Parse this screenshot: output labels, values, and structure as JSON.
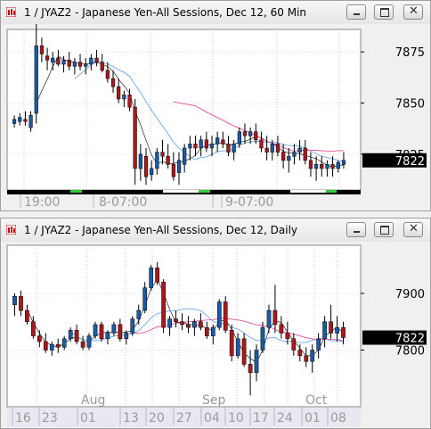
{
  "windows": [
    {
      "title": "1 / JYAZ2 - Japanese Yen-All Sessions, Dec 12, 60 Min",
      "price_labels": [
        "7875",
        "7850",
        "7825"
      ],
      "price_values": [
        7875,
        7850,
        7825
      ],
      "last_price": "7822",
      "time_labels": [
        "19:00",
        "8-07:00",
        "9-07:00"
      ],
      "chart_data": {
        "type": "candlestick",
        "title": "1 / JYAZ2 - Japanese Yen-All Sessions, Dec 12, 60 Min",
        "ylim": [
          7807.5,
          7886
        ],
        "last": 7822,
        "candles": [
          [
            7840,
            7844,
            7838,
            7842
          ],
          [
            7841,
            7845,
            7839,
            7843
          ],
          [
            7842,
            7846,
            7839,
            7841
          ],
          [
            7838,
            7846,
            7836,
            7844
          ],
          [
            7845,
            7890,
            7840,
            7878
          ],
          [
            7878,
            7882,
            7870,
            7874
          ],
          [
            7873,
            7877,
            7866,
            7871
          ],
          [
            7870,
            7875,
            7866,
            7872
          ],
          [
            7872,
            7876,
            7868,
            7869
          ],
          [
            7869,
            7873,
            7865,
            7871
          ],
          [
            7871,
            7875,
            7866,
            7868
          ],
          [
            7868,
            7872,
            7864,
            7870
          ],
          [
            7870,
            7874,
            7866,
            7868
          ],
          [
            7868,
            7872,
            7864,
            7869
          ],
          [
            7869,
            7874,
            7866,
            7872
          ],
          [
            7872,
            7876,
            7868,
            7870
          ],
          [
            7870,
            7874,
            7865,
            7866
          ],
          [
            7866,
            7870,
            7860,
            7862
          ],
          [
            7862,
            7866,
            7855,
            7858
          ],
          [
            7858,
            7862,
            7850,
            7852
          ],
          [
            7852,
            7856,
            7848,
            7854
          ],
          [
            7854,
            7857,
            7846,
            7848
          ],
          [
            7848,
            7852,
            7810,
            7818
          ],
          [
            7818,
            7830,
            7812,
            7825
          ],
          [
            7824,
            7828,
            7810,
            7814
          ],
          [
            7815,
            7822,
            7812,
            7818
          ],
          [
            7818,
            7828,
            7815,
            7826
          ],
          [
            7826,
            7832,
            7820,
            7824
          ],
          [
            7824,
            7830,
            7818,
            7820
          ],
          [
            7820,
            7826,
            7812,
            7814
          ],
          [
            7816,
            7826,
            7810,
            7822
          ],
          [
            7820,
            7830,
            7816,
            7828
          ],
          [
            7828,
            7834,
            7822,
            7830
          ],
          [
            7830,
            7834,
            7824,
            7828
          ],
          [
            7828,
            7834,
            7824,
            7832
          ],
          [
            7832,
            7836,
            7826,
            7828
          ],
          [
            7828,
            7834,
            7824,
            7830
          ],
          [
            7830,
            7836,
            7826,
            7833
          ],
          [
            7832,
            7836,
            7828,
            7830
          ],
          [
            7830,
            7834,
            7824,
            7826
          ],
          [
            7826,
            7832,
            7822,
            7830
          ],
          [
            7830,
            7838,
            7828,
            7836
          ],
          [
            7836,
            7840,
            7830,
            7834
          ],
          [
            7834,
            7838,
            7830,
            7836
          ],
          [
            7836,
            7840,
            7830,
            7832
          ],
          [
            7832,
            7836,
            7826,
            7828
          ],
          [
            7828,
            7834,
            7822,
            7826
          ],
          [
            7826,
            7832,
            7822,
            7830
          ],
          [
            7830,
            7834,
            7824,
            7826
          ],
          [
            7826,
            7830,
            7818,
            7822
          ],
          [
            7822,
            7828,
            7816,
            7824
          ],
          [
            7824,
            7830,
            7820,
            7826
          ],
          [
            7826,
            7832,
            7822,
            7828
          ],
          [
            7828,
            7832,
            7820,
            7822
          ],
          [
            7822,
            7826,
            7814,
            7818
          ],
          [
            7818,
            7824,
            7812,
            7820
          ],
          [
            7820,
            7824,
            7814,
            7818
          ],
          [
            7818,
            7822,
            7814,
            7820
          ],
          [
            7820,
            7824,
            7814,
            7818
          ],
          [
            7818,
            7822,
            7816,
            7821
          ],
          [
            7820,
            7826,
            7818,
            7822
          ]
        ]
      }
    },
    {
      "title": "1 / JYAZ2 - Japanese Yen-All Sessions, Dec 12, Daily",
      "price_labels": [
        "7900",
        "7800"
      ],
      "price_values": [
        7900,
        7800
      ],
      "last_price": "7822",
      "month_labels": [
        "Aug",
        "Sep",
        "Oct"
      ],
      "date_labels": [
        "16",
        "23",
        "01",
        "13",
        "20",
        "27",
        "04",
        "10",
        "17",
        "24",
        "01",
        "08"
      ],
      "chart_data": {
        "type": "candlestick",
        "title": "1 / JYAZ2 - Japanese Yen-All Sessions, Dec 12, Daily",
        "ylim": [
          7700,
          7985
        ],
        "last": 7822,
        "candles": [
          [
            7880,
            7900,
            7860,
            7895
          ],
          [
            7895,
            7905,
            7860,
            7870
          ],
          [
            7870,
            7880,
            7845,
            7850
          ],
          [
            7850,
            7860,
            7820,
            7825
          ],
          [
            7825,
            7835,
            7805,
            7815
          ],
          [
            7815,
            7830,
            7795,
            7800
          ],
          [
            7800,
            7815,
            7790,
            7810
          ],
          [
            7810,
            7820,
            7795,
            7805
          ],
          [
            7805,
            7825,
            7800,
            7820
          ],
          [
            7820,
            7840,
            7815,
            7835
          ],
          [
            7835,
            7845,
            7810,
            7815
          ],
          [
            7815,
            7825,
            7800,
            7805
          ],
          [
            7805,
            7830,
            7800,
            7825
          ],
          [
            7825,
            7850,
            7820,
            7845
          ],
          [
            7845,
            7850,
            7815,
            7820
          ],
          [
            7820,
            7835,
            7810,
            7830
          ],
          [
            7830,
            7850,
            7825,
            7845
          ],
          [
            7845,
            7855,
            7815,
            7820
          ],
          [
            7820,
            7835,
            7810,
            7830
          ],
          [
            7830,
            7860,
            7825,
            7855
          ],
          [
            7855,
            7880,
            7845,
            7870
          ],
          [
            7870,
            7920,
            7865,
            7910
          ],
          [
            7910,
            7950,
            7905,
            7945
          ],
          [
            7945,
            7955,
            7915,
            7920
          ],
          [
            7920,
            7925,
            7830,
            7840
          ],
          [
            7840,
            7860,
            7825,
            7855
          ],
          [
            7855,
            7870,
            7840,
            7850
          ],
          [
            7850,
            7865,
            7835,
            7845
          ],
          [
            7845,
            7860,
            7830,
            7840
          ],
          [
            7840,
            7855,
            7825,
            7850
          ],
          [
            7850,
            7865,
            7835,
            7840
          ],
          [
            7840,
            7850,
            7820,
            7825
          ],
          [
            7825,
            7845,
            7810,
            7840
          ],
          [
            7840,
            7890,
            7835,
            7885
          ],
          [
            7885,
            7895,
            7830,
            7835
          ],
          [
            7835,
            7845,
            7780,
            7790
          ],
          [
            7790,
            7830,
            7785,
            7820
          ],
          [
            7820,
            7830,
            7770,
            7775
          ],
          [
            7775,
            7800,
            7720,
            7760
          ],
          [
            7760,
            7810,
            7745,
            7800
          ],
          [
            7800,
            7850,
            7795,
            7840
          ],
          [
            7840,
            7880,
            7830,
            7870
          ],
          [
            7870,
            7915,
            7830,
            7845
          ],
          [
            7845,
            7860,
            7820,
            7830
          ],
          [
            7830,
            7850,
            7810,
            7820
          ],
          [
            7820,
            7830,
            7790,
            7800
          ],
          [
            7800,
            7810,
            7780,
            7790
          ],
          [
            7790,
            7805,
            7770,
            7780
          ],
          [
            7780,
            7810,
            7760,
            7800
          ],
          [
            7800,
            7830,
            7785,
            7820
          ],
          [
            7820,
            7860,
            7805,
            7850
          ],
          [
            7850,
            7880,
            7820,
            7830
          ],
          [
            7830,
            7860,
            7815,
            7840
          ],
          [
            7840,
            7850,
            7810,
            7822
          ]
        ]
      }
    }
  ]
}
